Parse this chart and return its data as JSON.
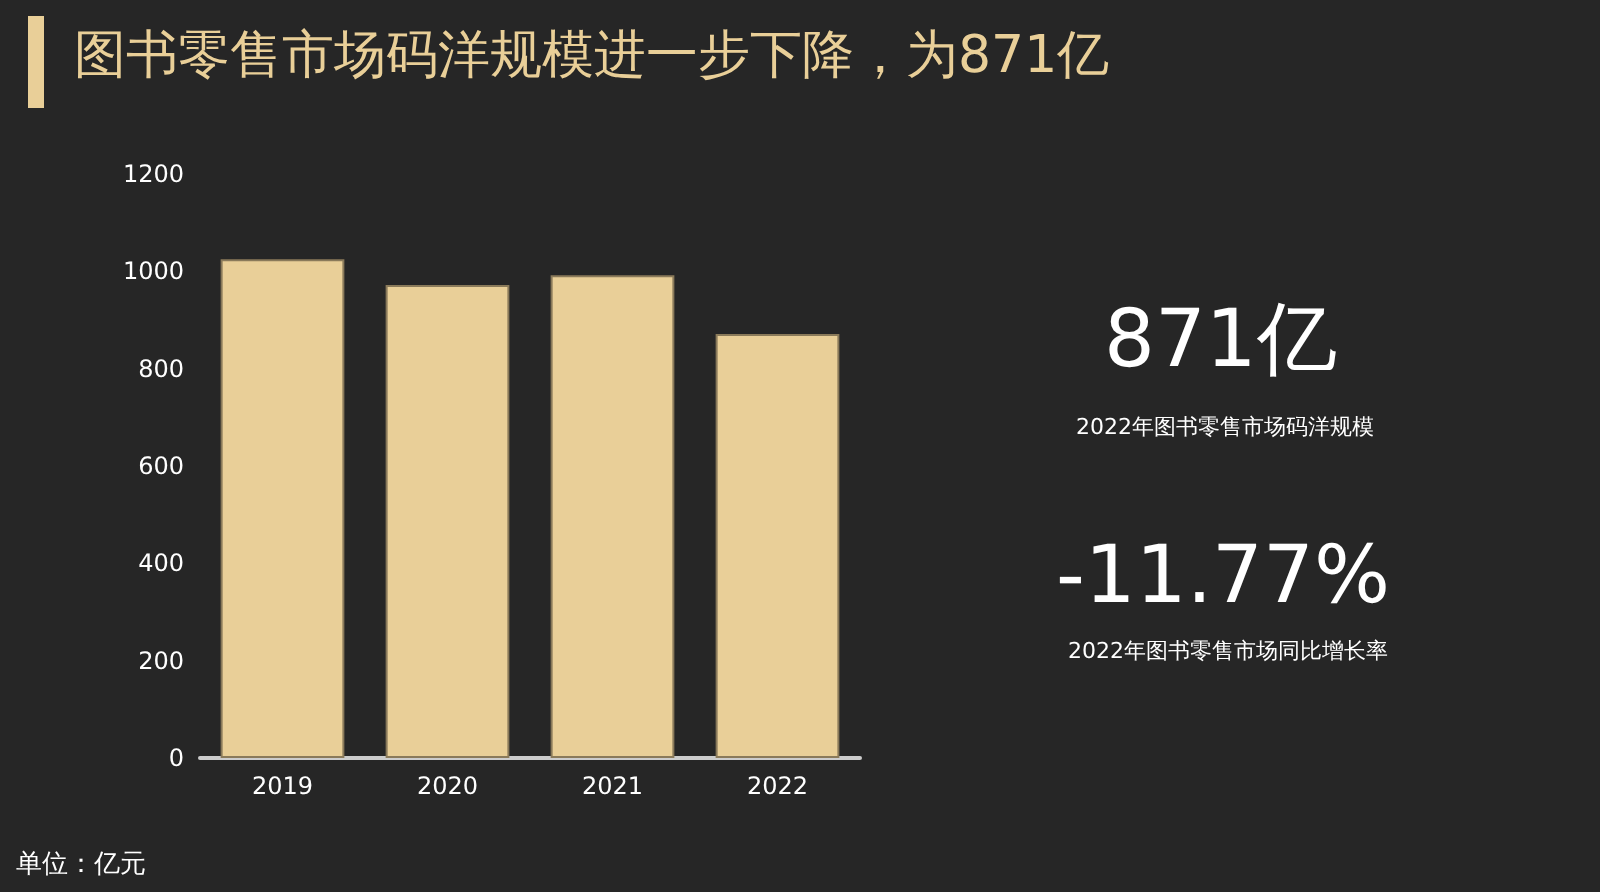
{
  "chart_data": {
    "type": "bar",
    "title": "图书零售市场码洋规模进一步下降，为871亿",
    "categories": [
      "2019",
      "2020",
      "2021",
      "2022"
    ],
    "values": [
      1025,
      972,
      992,
      871
    ],
    "color": "#e9cf98",
    "ylim": [
      0,
      1200
    ],
    "yticks": [
      0,
      200,
      400,
      600,
      800,
      1000,
      1200
    ],
    "grid": false,
    "annotations": [
      "871亿",
      "2022年图书零售市场码洋规模",
      "-11.77%",
      "2022年图书零售市场同比增长率",
      "单位：亿元"
    ]
  }
}
